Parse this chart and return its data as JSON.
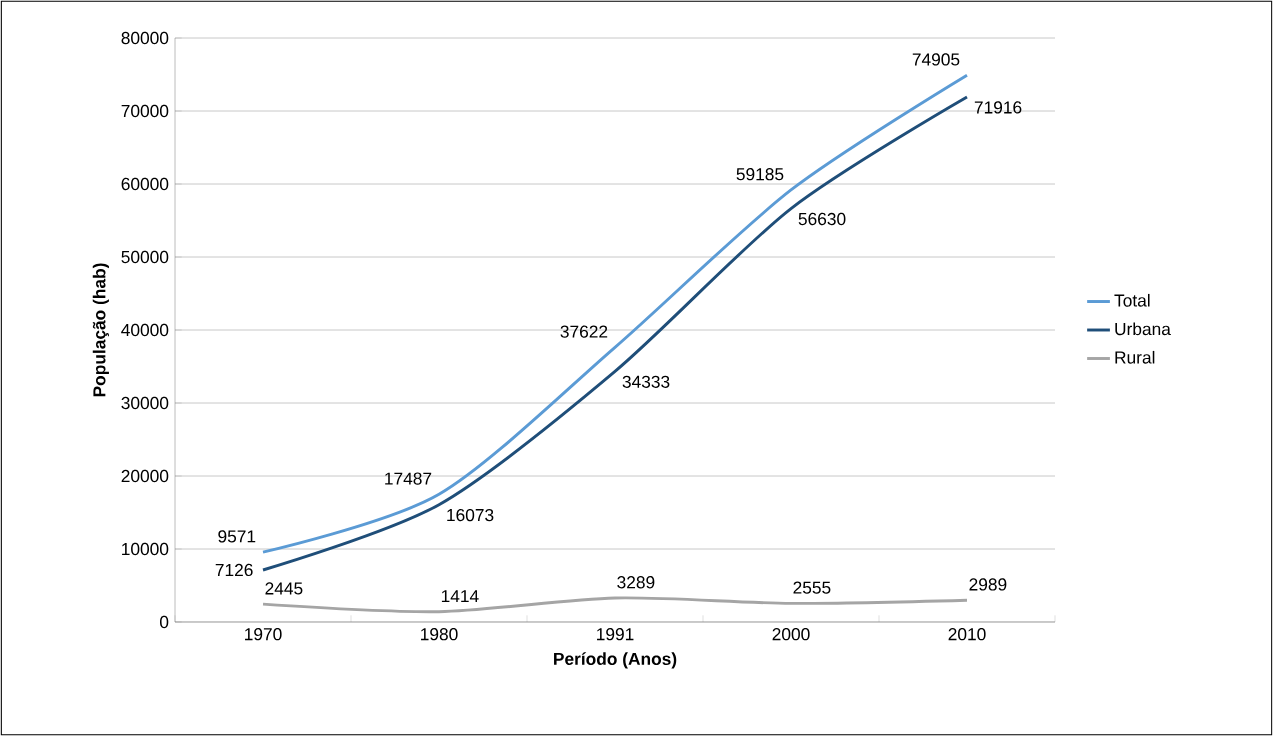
{
  "chart_data": {
    "type": "line",
    "xlabel": "Período (Anos)",
    "ylabel": "População (hab)",
    "categories": [
      "1970",
      "1980",
      "1991",
      "2000",
      "2010"
    ],
    "series": [
      {
        "name": "Total",
        "color": "#5b9bd5",
        "values": [
          9571,
          17487,
          37622,
          59185,
          74905
        ]
      },
      {
        "name": "Urbana",
        "color": "#1f4e79",
        "values": [
          7126,
          16073,
          34333,
          56630,
          71916
        ]
      },
      {
        "name": "Rural",
        "color": "#a5a5a5",
        "values": [
          2445,
          1414,
          3289,
          2555,
          2989
        ]
      }
    ],
    "ylim": [
      0,
      80000
    ],
    "yticks": [
      0,
      10000,
      20000,
      30000,
      40000,
      50000,
      60000,
      70000,
      80000
    ],
    "grid": "y",
    "legend": "right",
    "data_labels": true
  }
}
